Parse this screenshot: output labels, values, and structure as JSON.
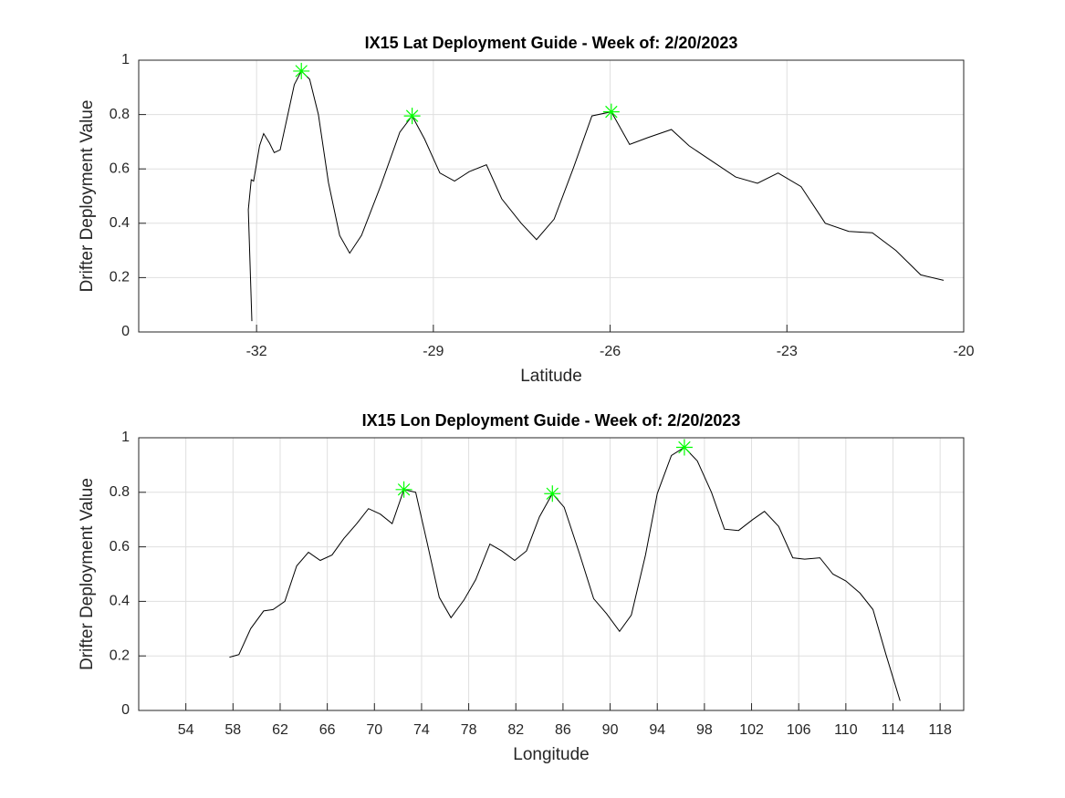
{
  "chart_data": [
    {
      "type": "line",
      "title": "IX15 Lat Deployment Guide - Week of: 2/20/2023",
      "xlabel": "Latitude",
      "ylabel": "Drifter Deployment Value",
      "xlim": [
        -34,
        -20
      ],
      "xticks": [
        -32,
        -29,
        -26,
        -23,
        -20
      ],
      "ylim": [
        0,
        1
      ],
      "yticks": [
        0,
        0.2,
        0.4,
        0.6,
        0.8,
        1
      ],
      "grid": true,
      "series": [
        {
          "color": "#000000",
          "x": [
            -32.08,
            -32.14,
            -32.09,
            -32.05,
            -31.95,
            -31.88,
            -31.78,
            -31.7,
            -31.6,
            -31.47,
            -31.36,
            -31.24,
            -31.1,
            -30.95,
            -30.78,
            -30.59,
            -30.42,
            -30.22,
            -29.89,
            -29.57,
            -29.36,
            -29.15,
            -28.89,
            -28.64,
            -28.39,
            -28.1,
            -27.84,
            -27.51,
            -27.25,
            -26.95,
            -26.62,
            -26.31,
            -25.98,
            -25.67,
            -25.36,
            -24.96,
            -24.66,
            -24.28,
            -23.87,
            -23.5,
            -23.15,
            -22.76,
            -22.35,
            -21.95,
            -21.55,
            -21.15,
            -20.73,
            -20.34
          ],
          "values": [
            0.04,
            0.45,
            0.56,
            0.555,
            0.685,
            0.73,
            0.695,
            0.66,
            0.67,
            0.8,
            0.91,
            0.96,
            0.93,
            0.8,
            0.55,
            0.355,
            0.29,
            0.355,
            0.54,
            0.735,
            0.795,
            0.71,
            0.585,
            0.555,
            0.59,
            0.615,
            0.49,
            0.4,
            0.34,
            0.415,
            0.605,
            0.795,
            0.81,
            0.69,
            0.715,
            0.745,
            0.685,
            0.63,
            0.57,
            0.547,
            0.585,
            0.535,
            0.4,
            0.37,
            0.365,
            0.3,
            0.21,
            0.19
          ]
        },
        {
          "color": "#00ff00",
          "marker": "star",
          "x": [
            -31.24,
            -29.36,
            -25.98
          ],
          "values": [
            0.96,
            0.795,
            0.81
          ]
        }
      ]
    },
    {
      "type": "line",
      "title": "IX15 Lon Deployment Guide - Week of: 2/20/2023",
      "xlabel": "Longitude",
      "ylabel": "Drifter Deployment Value",
      "xlim": [
        50,
        120
      ],
      "xticks": [
        54,
        58,
        62,
        66,
        70,
        74,
        78,
        82,
        86,
        90,
        94,
        98,
        102,
        106,
        110,
        114,
        118
      ],
      "ylim": [
        0,
        1
      ],
      "yticks": [
        0,
        0.2,
        0.4,
        0.6,
        0.8,
        1
      ],
      "grid": true,
      "series": [
        {
          "color": "#000000",
          "x": [
            57.7,
            58.5,
            59.5,
            60.6,
            61.4,
            62.4,
            63.4,
            64.4,
            65.4,
            66.4,
            67.4,
            68.5,
            69.5,
            70.5,
            71.5,
            72.5,
            73.5,
            74.5,
            75.5,
            76.5,
            77.6,
            78.6,
            79.8,
            80.8,
            81.9,
            82.9,
            84.0,
            85.1,
            86.1,
            87.4,
            88.6,
            89.7,
            90.8,
            91.8,
            93.0,
            94.0,
            95.2,
            96.3,
            97.4,
            98.6,
            99.7,
            100.9,
            102.1,
            103.1,
            104.3,
            105.5,
            106.5,
            107.8,
            108.9,
            110.0,
            111.2,
            112.3,
            113.4,
            114.6
          ],
          "values": [
            0.195,
            0.205,
            0.3,
            0.365,
            0.37,
            0.4,
            0.53,
            0.58,
            0.55,
            0.57,
            0.63,
            0.685,
            0.74,
            0.72,
            0.685,
            0.81,
            0.8,
            0.61,
            0.415,
            0.34,
            0.405,
            0.48,
            0.61,
            0.585,
            0.55,
            0.585,
            0.71,
            0.795,
            0.745,
            0.575,
            0.41,
            0.355,
            0.29,
            0.35,
            0.57,
            0.795,
            0.935,
            0.965,
            0.915,
            0.8,
            0.665,
            0.66,
            0.7,
            0.73,
            0.675,
            0.56,
            0.555,
            0.56,
            0.5,
            0.475,
            0.43,
            0.37,
            0.205,
            0.035
          ]
        },
        {
          "color": "#00ff00",
          "marker": "star",
          "x": [
            72.5,
            85.1,
            96.3
          ],
          "values": [
            0.81,
            0.795,
            0.965
          ]
        }
      ]
    }
  ]
}
